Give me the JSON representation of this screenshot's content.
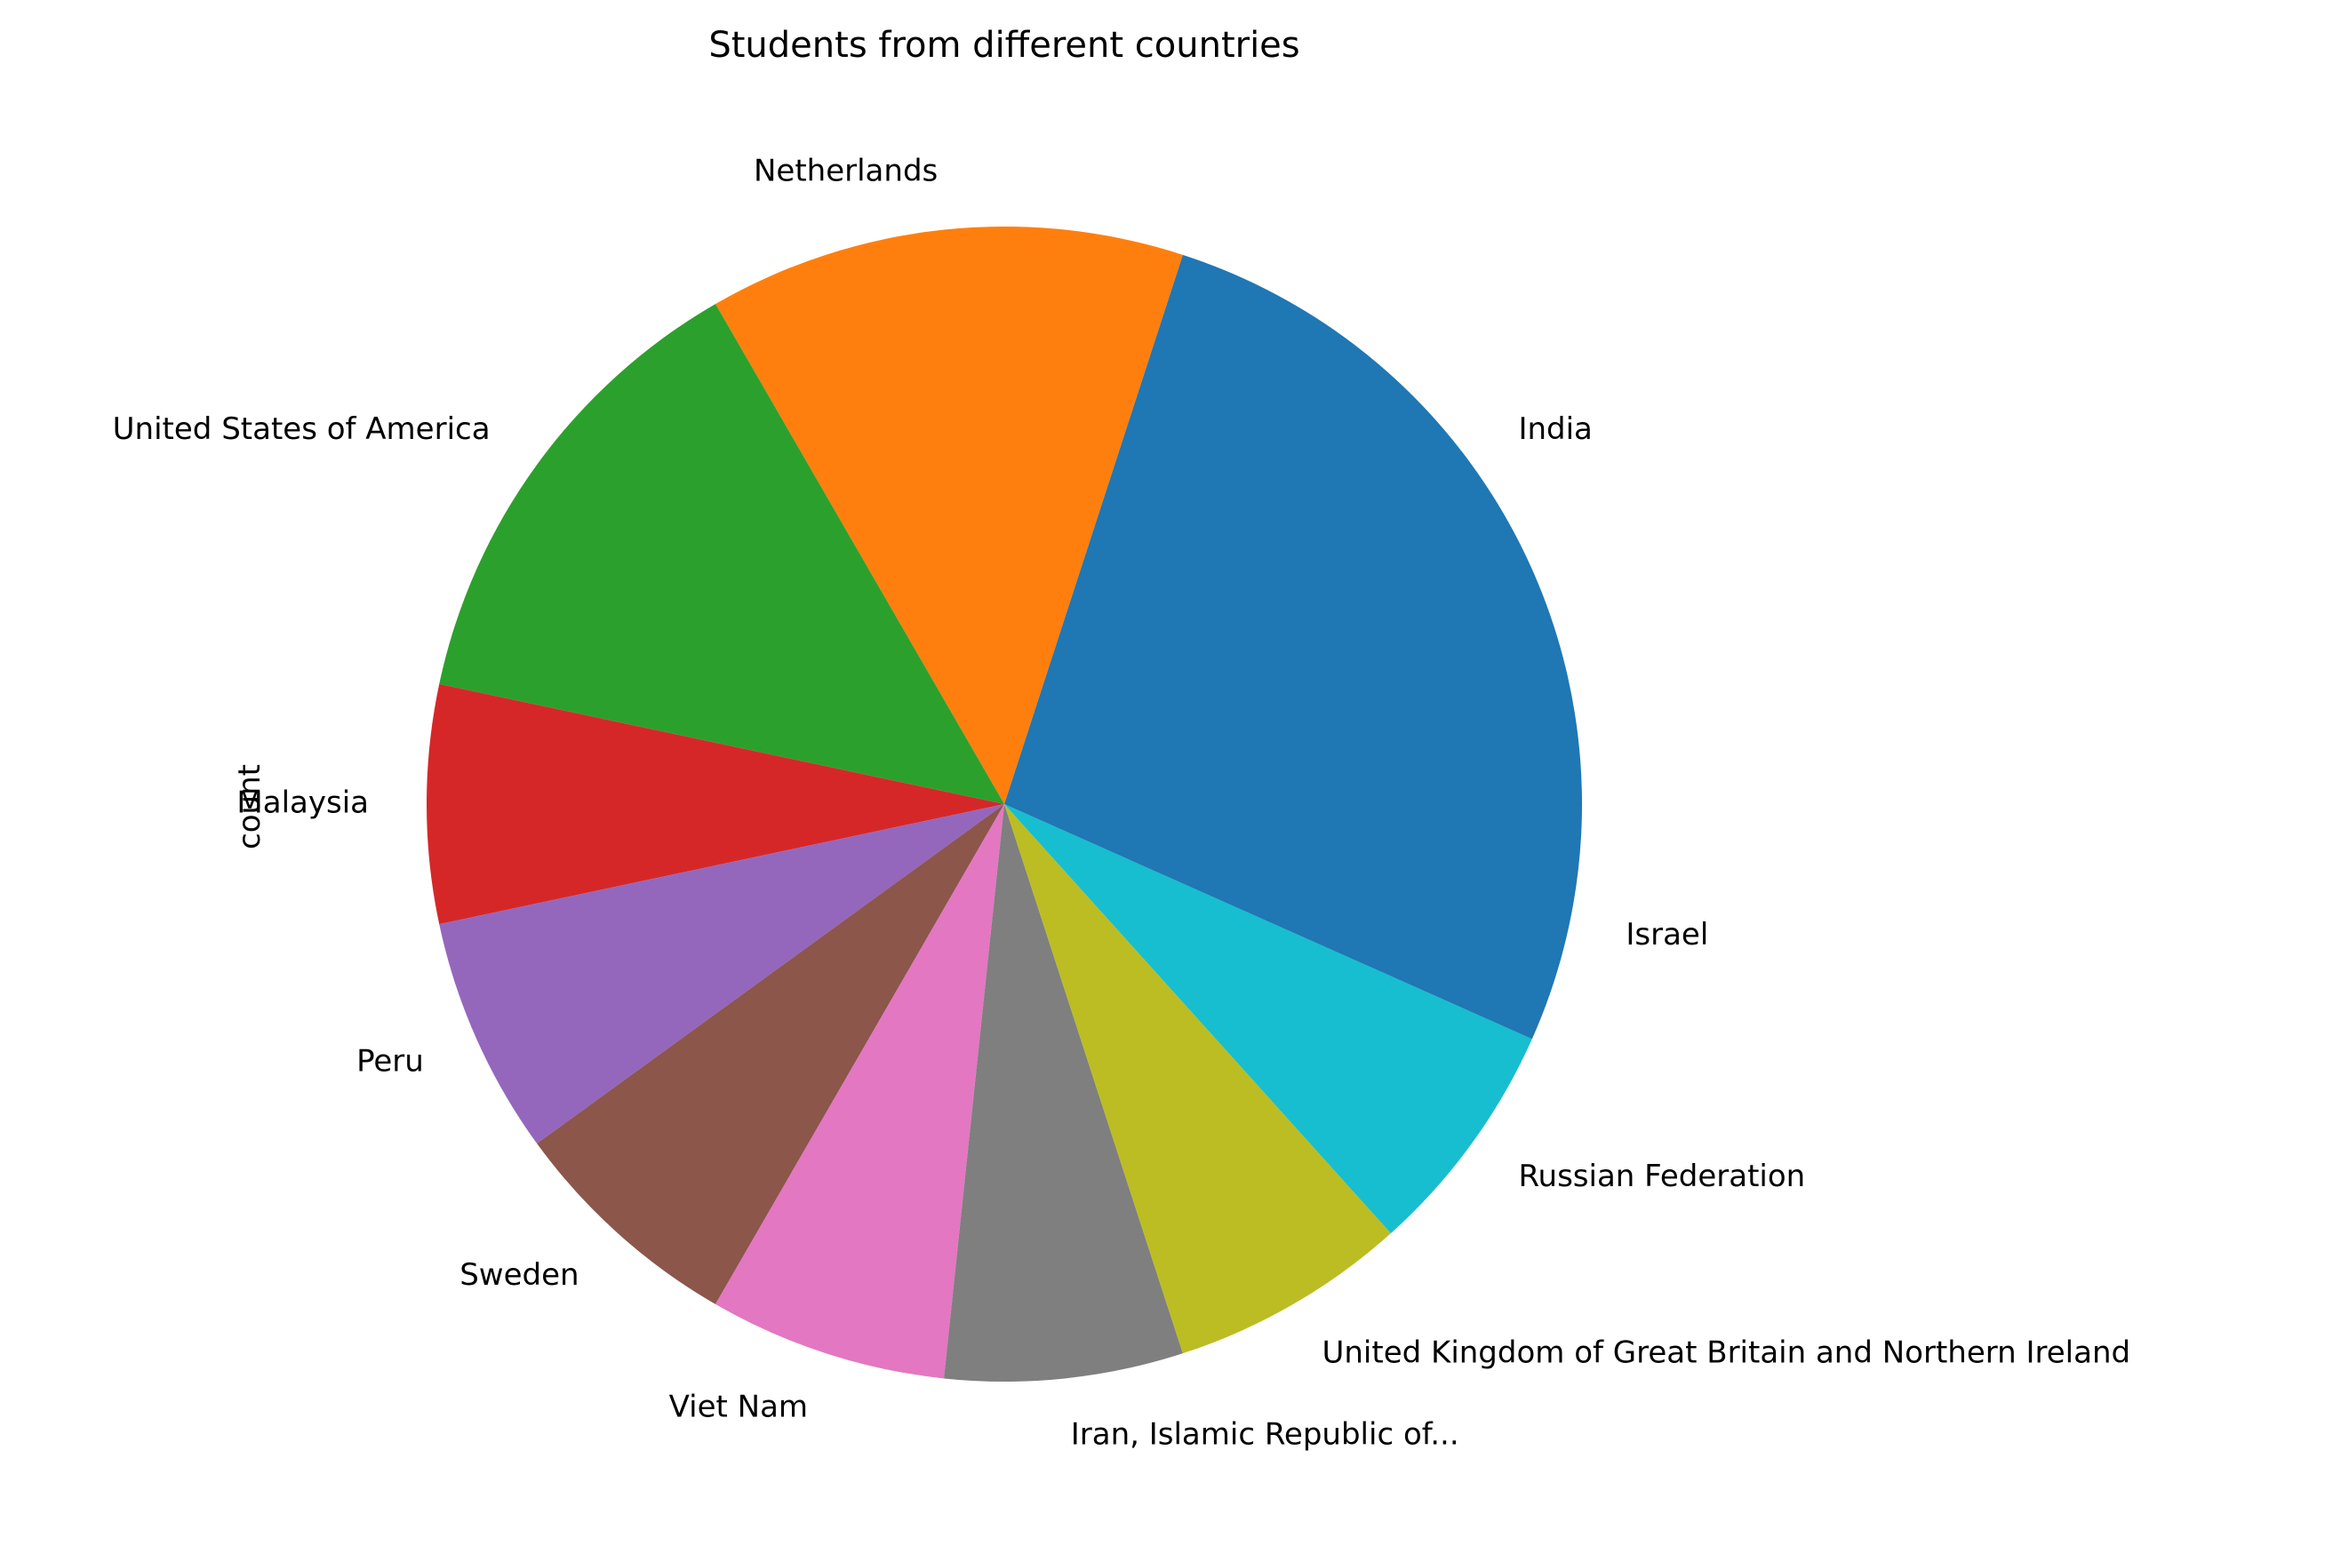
{
  "chart_data": {
    "type": "pie",
    "title": "Students from different countries",
    "ylabel": "count",
    "categories": [
      "India",
      "Netherlands",
      "United States of America",
      "Malaysia",
      "Peru",
      "Sweden",
      "Viet Nam",
      "Iran, Islamic Republic of...",
      "United Kingdom of Great Britain and Northern Ireland",
      "Russian Federation",
      "Israel"
    ],
    "values": [
      3,
      2,
      2,
      1,
      1,
      1,
      1,
      1,
      1,
      1,
      1
    ],
    "colors": [
      "#1f77b4",
      "#ff7f0e",
      "#2ca02c",
      "#d62728",
      "#9467bd",
      "#8c564b",
      "#e377c2",
      "#7f7f7f",
      "#bcbd22",
      "#17becf",
      "#1f77b4"
    ],
    "start_angle": 0,
    "direction": "counterclockwise"
  }
}
